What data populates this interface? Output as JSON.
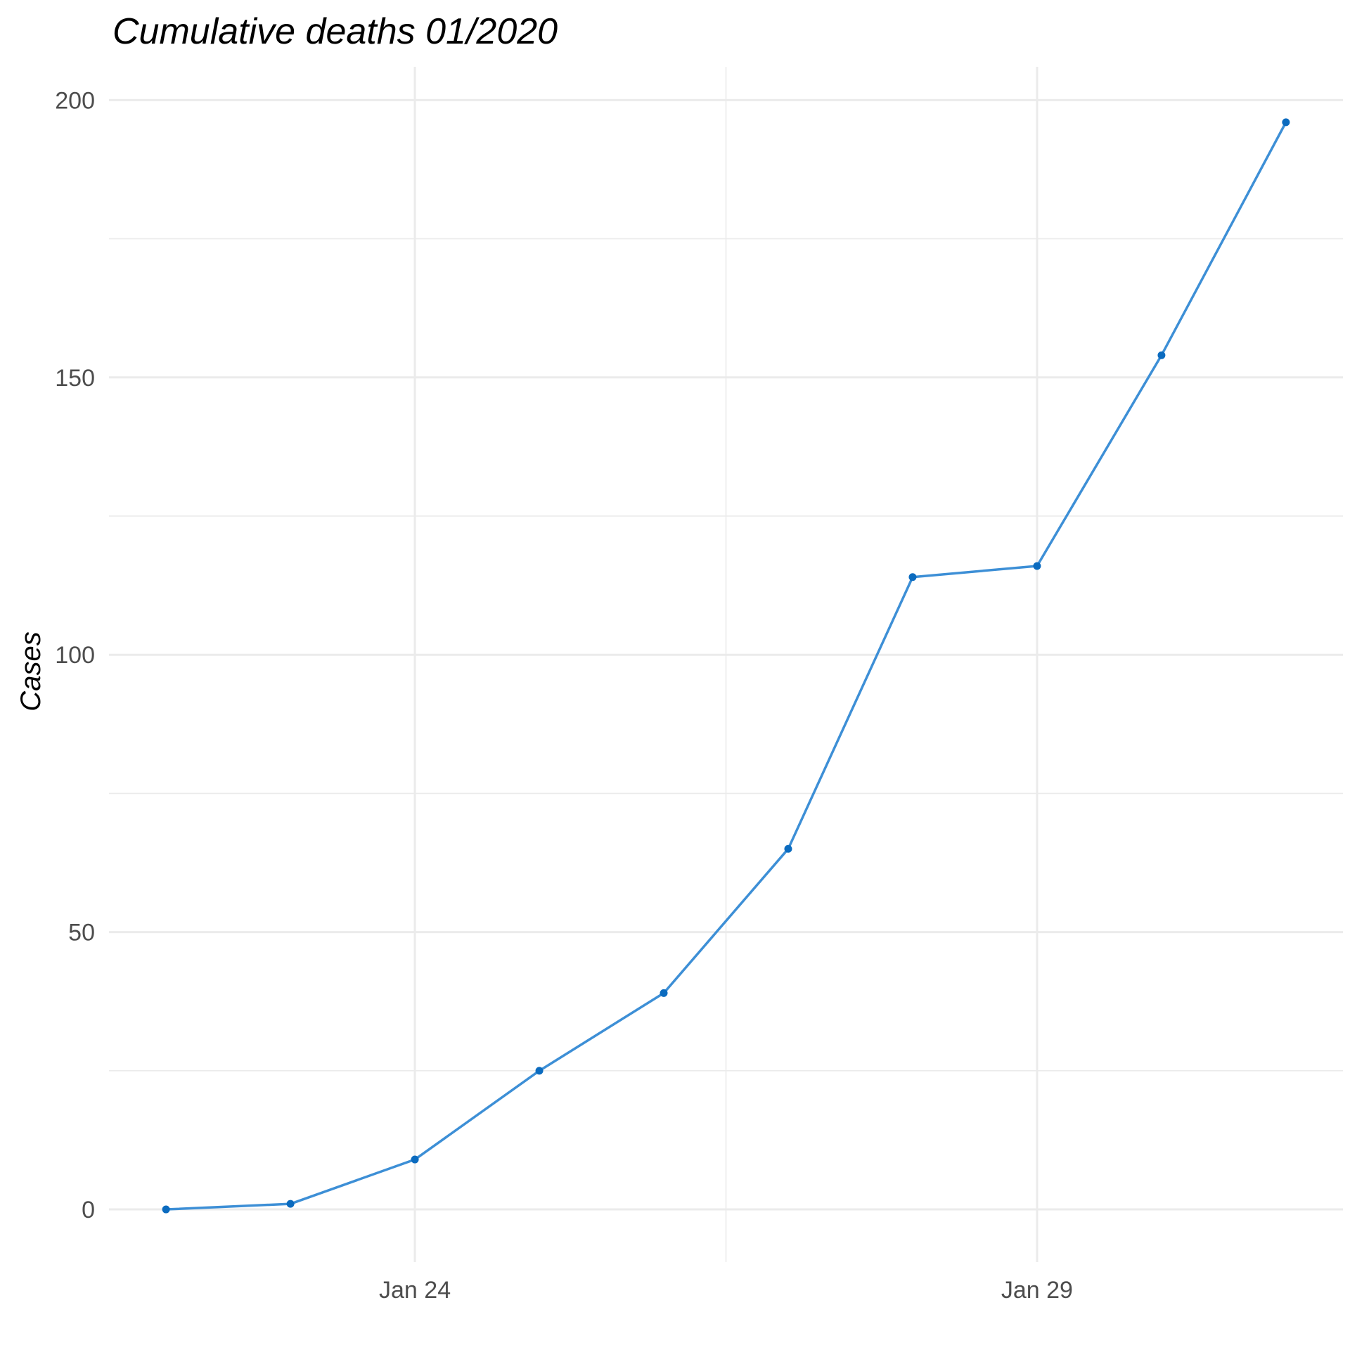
{
  "chart_data": {
    "type": "line",
    "title": "Cumulative deaths 01/2020",
    "xlabel": "",
    "ylabel": "Cases",
    "x": [
      "2020-01-22",
      "2020-01-23",
      "2020-01-24",
      "2020-01-25",
      "2020-01-26",
      "2020-01-27",
      "2020-01-28",
      "2020-01-29",
      "2020-01-30",
      "2020-01-31"
    ],
    "series": [
      {
        "values": [
          0,
          1,
          9,
          25,
          39,
          65,
          114,
          116,
          154,
          196
        ]
      }
    ],
    "xlim": [
      "2020-01-21T13:00",
      "2020-01-31T11:00"
    ],
    "ylim": [
      -9.5,
      206
    ],
    "yticks": [
      0,
      50,
      100,
      150,
      200
    ],
    "yticks_minor": [
      25,
      75,
      125,
      175
    ],
    "xticks": [
      {
        "date": "2020-01-24",
        "label": "Jan 24"
      },
      {
        "date": "2020-01-29",
        "label": "Jan 29"
      }
    ],
    "xticks_minor": [
      "2020-01-26T12:00"
    ],
    "grid": true,
    "legend": "none",
    "colors": {
      "line": "#3d8fd6",
      "point": "#0b6bbf",
      "grid": "#ebebeb",
      "tick_text": "#4d4d4d",
      "title_text": "#000000"
    }
  }
}
